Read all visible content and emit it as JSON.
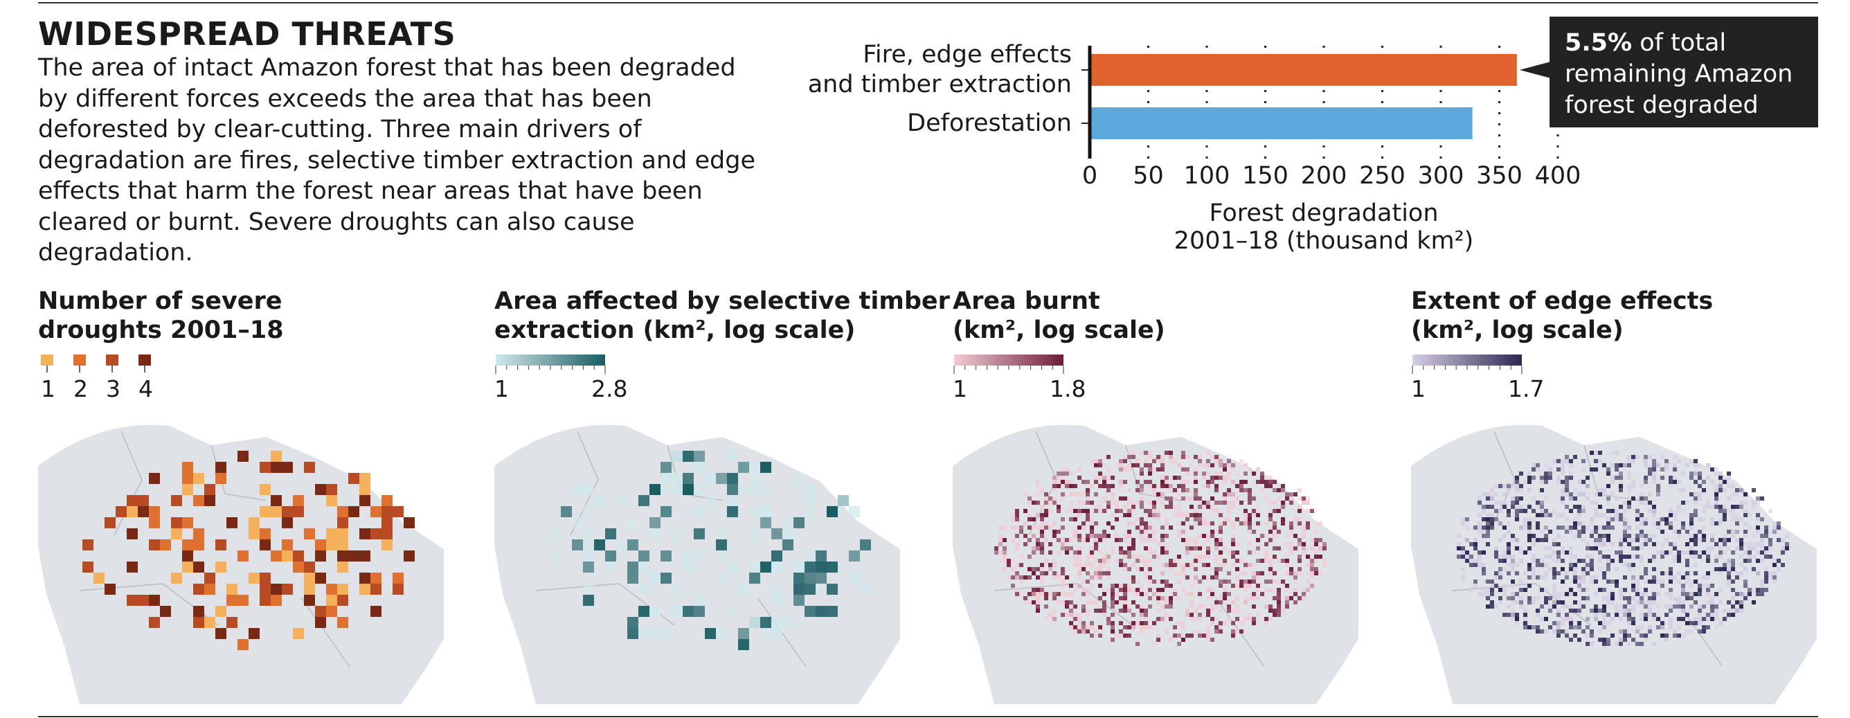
{
  "header": {
    "title": "WIDESPREAD THREATS",
    "description": "The area of intact Amazon forest that has been degraded by different forces exceeds the area that has been deforested by clear-cutting. Three main drivers of degradation are fires, selective timber extraction and edge effects that harm the forest near areas that have been cleared or burnt. Severe droughts can also cause degradation."
  },
  "chart_data": {
    "type": "barh",
    "categories": [
      "Fire, edge effects\nand timber extraction",
      "Deforestation"
    ],
    "values": [
      365,
      327
    ],
    "colors": [
      "#e0622f",
      "#5aa8dc"
    ],
    "xlabel": [
      "Forest degradation",
      "2001–18 (thousand km²)"
    ],
    "xlim": [
      0,
      400
    ],
    "xticks": [
      0,
      50,
      100,
      150,
      200,
      250,
      300,
      350,
      400
    ],
    "grid": true,
    "annotation": {
      "highlight": "5.5%",
      "text": "of total remaining Amazon forest degraded"
    }
  },
  "maps": [
    {
      "title": "Number of severe\ndroughts 2001–18",
      "legend": {
        "type": "categorical",
        "labels": [
          1,
          2,
          3,
          4
        ],
        "colors": [
          "#f4b05a",
          "#e0702f",
          "#b84a24",
          "#7a2a14"
        ]
      }
    },
    {
      "title": "Area affected by selective timber\nextraction (km², log scale)",
      "legend": {
        "type": "gradient",
        "labels": [
          1,
          2.8
        ],
        "colors": [
          "#d2e8ec",
          "#1a5c63"
        ]
      }
    },
    {
      "title": "Area burnt\n(km², log scale)",
      "legend": {
        "type": "gradient",
        "labels": [
          1,
          1.8
        ],
        "colors": [
          "#f1ccd3",
          "#6e1d3a"
        ]
      }
    },
    {
      "title": "Extent of edge effects\n(km², log scale)",
      "legend": {
        "type": "gradient",
        "labels": [
          1,
          1.7
        ],
        "colors": [
          "#d6cde4",
          "#2c2851"
        ]
      }
    }
  ]
}
